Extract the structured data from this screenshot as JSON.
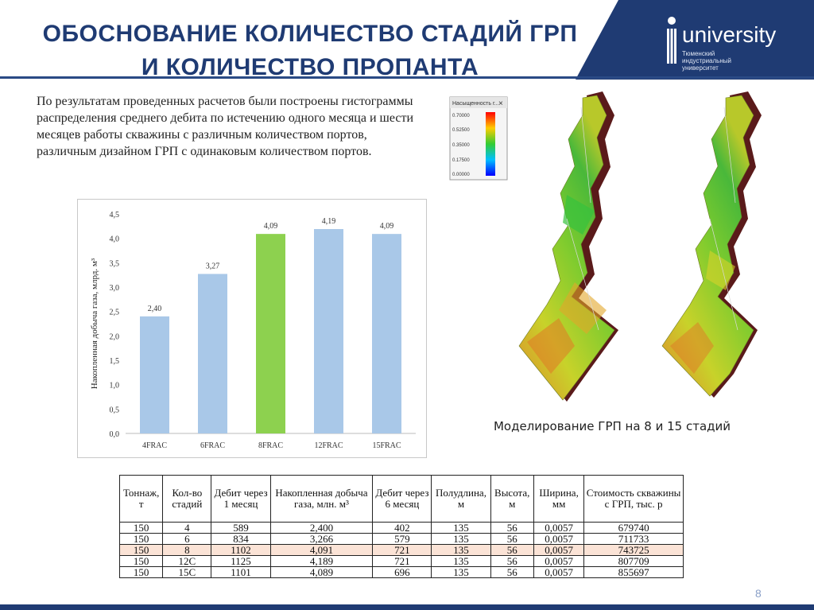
{
  "title": "ОБОСНОВАНИЕ КОЛИЧЕСТВО СТАДИЙ ГРП И КОЛИЧЕСТВО ПРОПАНТА",
  "logo": {
    "word": "university",
    "sub": "Тюменский индустриальный университет"
  },
  "intro_text": "По результатам проведенных расчетов были построены гистограммы распределения среднего дебита по истечению одного месяца и шести месяцев работы скважины с различным количеством портов, различным дизайном ГРП с одинаковым количеством портов.",
  "colors": {
    "accent": "#1f3b73",
    "bar_default": "#a9c8e8",
    "bar_highlight": "#8dd14f",
    "row_highlight": "#fbe3d6"
  },
  "chart_data": {
    "type": "bar",
    "categories": [
      "4FRAC",
      "6FRAC",
      "8FRAC",
      "12FRAC",
      "15FRAC"
    ],
    "values": [
      2.4,
      3.27,
      4.09,
      4.19,
      4.09
    ],
    "value_labels": [
      "2,40",
      "3,27",
      "4,09",
      "4,19",
      "4,09"
    ],
    "highlight_index": 2,
    "ylabel": "Накопленная добыча газа, млрд. м³",
    "ylim": [
      0,
      4.5
    ],
    "yticks": [
      "0,0",
      "0,5",
      "1,0",
      "1,5",
      "2,0",
      "2,5",
      "3,0",
      "3,5",
      "4,0",
      "4,5"
    ],
    "grid": false
  },
  "legend_panel": {
    "title": "Насыщенность г...",
    "close": "×",
    "ticks": [
      "0.70000",
      "0.52500",
      "0.35000",
      "0.17500",
      "0.00000"
    ]
  },
  "caption": "Моделирование ГРП на 8 и 15 стадий",
  "table": {
    "headers": [
      "Тоннаж, т",
      "Кол-во стадий",
      "Дебит через 1 месяц",
      "Накопленная добыча газа, млн. м³",
      "Дебит через 6 месяц",
      "Полудлина, м",
      "Высота, м",
      "Ширина, мм",
      "Стоимость скважины с ГРП, тыс. р"
    ],
    "rows": [
      [
        "150",
        "4",
        "589",
        "2,400",
        "402",
        "135",
        "56",
        "0,0057",
        "679740"
      ],
      [
        "150",
        "6",
        "834",
        "3,266",
        "579",
        "135",
        "56",
        "0,0057",
        "711733"
      ],
      [
        "150",
        "8",
        "1102",
        "4,091",
        "721",
        "135",
        "56",
        "0,0057",
        "743725"
      ],
      [
        "150",
        "12С",
        "1125",
        "4,189",
        "721",
        "135",
        "56",
        "0,0057",
        "807709"
      ],
      [
        "150",
        "15С",
        "1101",
        "4,089",
        "696",
        "135",
        "56",
        "0,0057",
        "855697"
      ]
    ],
    "highlight_row": 2
  },
  "page_number": "8"
}
